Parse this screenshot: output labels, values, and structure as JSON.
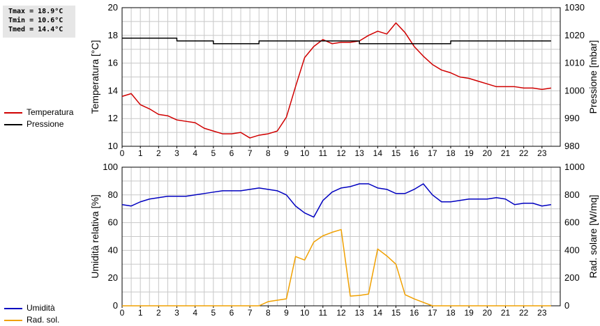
{
  "stats": {
    "tmax": "Tmax = 18.9°C",
    "tmin": "Tmin = 10.6°C",
    "tmed": "Tmed = 14.4°C"
  },
  "colors": {
    "temperature": "#d00000",
    "pressure": "#000000",
    "humidity": "#0000c0",
    "solar": "#f0a000",
    "grid": "#c8c8c8"
  },
  "chart_data": [
    {
      "type": "line",
      "xlabel": "",
      "x_ticks": [
        0,
        1,
        2,
        3,
        4,
        5,
        6,
        7,
        8,
        9,
        10,
        11,
        12,
        13,
        14,
        15,
        16,
        17,
        18,
        19,
        20,
        21,
        22,
        23
      ],
      "xlim": [
        0,
        24
      ],
      "ylabel": "Temperatura [°C]",
      "ylim": [
        10,
        20
      ],
      "y_ticks": [
        10,
        12,
        14,
        16,
        18,
        20
      ],
      "y2label": "Pressione [mbar]",
      "y2lim": [
        980,
        1030
      ],
      "y2_ticks": [
        980,
        990,
        1000,
        1010,
        1020,
        1030
      ],
      "grid": true,
      "legend": "left",
      "series": [
        {
          "name": "Temperatura",
          "axis": "left",
          "color": "#d00000",
          "x": [
            0,
            0.5,
            1,
            1.5,
            2,
            2.5,
            3,
            3.5,
            4,
            4.5,
            5,
            5.5,
            6,
            6.5,
            7,
            7.5,
            8,
            8.5,
            9,
            9.5,
            10,
            10.5,
            11,
            11.5,
            12,
            12.5,
            13,
            13.5,
            14,
            14.5,
            15,
            15.5,
            16,
            16.5,
            17,
            17.5,
            18,
            18.5,
            19,
            19.5,
            20,
            20.5,
            21,
            21.5,
            22,
            22.5,
            23,
            23.5
          ],
          "values": [
            13.6,
            13.8,
            13.0,
            12.7,
            12.3,
            12.2,
            11.9,
            11.8,
            11.7,
            11.3,
            11.1,
            10.9,
            10.9,
            11.0,
            10.6,
            10.8,
            10.9,
            11.1,
            12.1,
            14.3,
            16.4,
            17.2,
            17.7,
            17.4,
            17.5,
            17.5,
            17.6,
            18.0,
            18.3,
            18.1,
            18.9,
            18.2,
            17.2,
            16.5,
            15.9,
            15.5,
            15.3,
            15.0,
            14.9,
            14.7,
            14.5,
            14.3,
            14.3,
            14.3,
            14.2,
            14.2,
            14.1,
            14.2
          ]
        },
        {
          "name": "Pressione",
          "axis": "right",
          "color": "#000000",
          "x": [
            0,
            0.5,
            1,
            1.5,
            2,
            2.5,
            3,
            3.5,
            4,
            4.5,
            5,
            5.5,
            6,
            6.5,
            7,
            7.5,
            8,
            8.5,
            9,
            9.5,
            10,
            10.5,
            11,
            11.5,
            12,
            12.5,
            13,
            13.5,
            14,
            14.5,
            15,
            15.5,
            16,
            16.5,
            17,
            17.5,
            18,
            18.5,
            19,
            19.5,
            20,
            20.5,
            21,
            21.5,
            22,
            22.5,
            23,
            23.5
          ],
          "values": [
            1019,
            1019,
            1019,
            1019,
            1019,
            1019,
            1018,
            1018,
            1018,
            1018,
            1017,
            1017,
            1017,
            1017,
            1017,
            1018,
            1018,
            1018,
            1018,
            1018,
            1018,
            1018,
            1018,
            1018,
            1018,
            1018,
            1017,
            1017,
            1017,
            1017,
            1017,
            1017,
            1017,
            1017,
            1017,
            1017,
            1018,
            1018,
            1018,
            1018,
            1018,
            1018,
            1018,
            1018,
            1018,
            1018,
            1018,
            1018
          ]
        }
      ]
    },
    {
      "type": "line",
      "xlabel": "",
      "x_ticks": [
        0,
        1,
        2,
        3,
        4,
        5,
        6,
        7,
        8,
        9,
        10,
        11,
        12,
        13,
        14,
        15,
        16,
        17,
        18,
        19,
        20,
        21,
        22,
        23
      ],
      "xlim": [
        0,
        24
      ],
      "ylabel": "Umidità relativa [%]",
      "ylim": [
        0,
        100
      ],
      "y_ticks": [
        0,
        20,
        40,
        60,
        80,
        100
      ],
      "y2label": "Rad. solare [W/mq]",
      "y2lim": [
        0,
        1000
      ],
      "y2_ticks": [
        0,
        200,
        400,
        600,
        800,
        1000
      ],
      "grid": true,
      "legend": "left",
      "series": [
        {
          "name": "Umidità",
          "axis": "left",
          "color": "#0000c0",
          "x": [
            0,
            0.5,
            1,
            1.5,
            2,
            2.5,
            3,
            3.5,
            4,
            4.5,
            5,
            5.5,
            6,
            6.5,
            7,
            7.5,
            8,
            8.5,
            9,
            9.5,
            10,
            10.5,
            11,
            11.5,
            12,
            12.5,
            13,
            13.5,
            14,
            14.5,
            15,
            15.5,
            16,
            16.5,
            17,
            17.5,
            18,
            18.5,
            19,
            19.5,
            20,
            20.5,
            21,
            21.5,
            22,
            22.5,
            23,
            23.5
          ],
          "values": [
            73,
            72,
            75,
            77,
            78,
            79,
            79,
            79,
            80,
            81,
            82,
            83,
            83,
            83,
            84,
            85,
            84,
            83,
            80,
            72,
            67,
            64,
            76,
            82,
            85,
            86,
            88,
            88,
            85,
            84,
            81,
            81,
            84,
            88,
            80,
            75,
            75,
            76,
            77,
            77,
            77,
            78,
            77,
            73,
            74,
            74,
            72,
            73
          ]
        },
        {
          "name": "Rad. sol.",
          "axis": "right",
          "color": "#f0a000",
          "x": [
            0,
            0.5,
            1,
            1.5,
            2,
            2.5,
            3,
            3.5,
            4,
            4.5,
            5,
            5.5,
            6,
            6.5,
            7,
            7.5,
            8,
            8.5,
            9,
            9.5,
            10,
            10.5,
            11,
            11.5,
            12,
            12.5,
            13,
            13.5,
            14,
            14.5,
            15,
            15.5,
            16,
            16.5,
            17,
            17.5,
            18,
            18.5,
            19,
            19.5,
            20,
            20.5,
            21,
            21.5,
            22,
            22.5,
            23,
            23.5
          ],
          "values": [
            0,
            0,
            0,
            0,
            0,
            0,
            0,
            0,
            0,
            0,
            0,
            0,
            0,
            0,
            0,
            0,
            30,
            40,
            50,
            355,
            330,
            460,
            505,
            530,
            550,
            70,
            75,
            85,
            410,
            360,
            300,
            80,
            50,
            25,
            0,
            0,
            0,
            0,
            0,
            0,
            0,
            0,
            0,
            0,
            0,
            0,
            0,
            0
          ]
        }
      ]
    }
  ]
}
